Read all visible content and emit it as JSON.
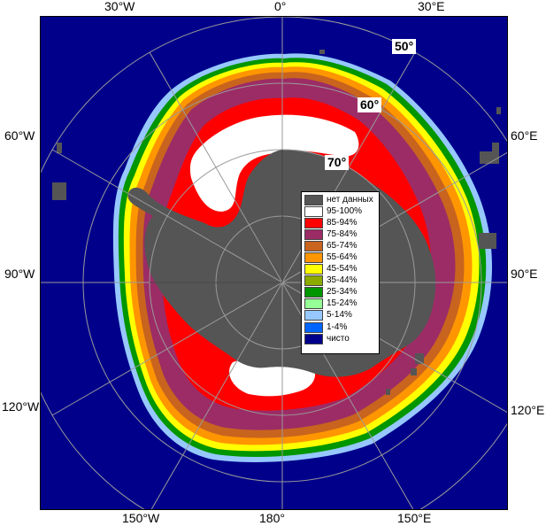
{
  "map": {
    "lon_labels": {
      "w30": "30°W",
      "zero": "0°",
      "e30": "30°E",
      "w60": "60°W",
      "e60": "60°E",
      "w90": "90°W",
      "e90": "90°E",
      "w120": "120°W",
      "e120": "120°E",
      "w150": "150°W",
      "deg180": "180°",
      "e150": "150°E"
    },
    "lat_labels": {
      "lat50": "50°",
      "lat60": "60°",
      "lat70": "70°"
    },
    "colors": {
      "ocean": "#00008b",
      "land": "#555555",
      "no_data": "#555555",
      "grid": "#9a9a9a"
    }
  },
  "legend": {
    "items": [
      {
        "label": "нет данных",
        "color": "#555555"
      },
      {
        "label": "95-100%",
        "color": "#ffffff"
      },
      {
        "label": "85-94%",
        "color": "#ff0000"
      },
      {
        "label": "75-84%",
        "color": "#9c2c66"
      },
      {
        "label": "65-74%",
        "color": "#c8641e"
      },
      {
        "label": "55-64%",
        "color": "#ff9600"
      },
      {
        "label": "45-54%",
        "color": "#ffff00"
      },
      {
        "label": "35-44%",
        "color": "#8caa00"
      },
      {
        "label": "25-34%",
        "color": "#009600"
      },
      {
        "label": "15-24%",
        "color": "#96ff96"
      },
      {
        "label": "5-14%",
        "color": "#96c8ff"
      },
      {
        "label": "1-4%",
        "color": "#0064ff"
      },
      {
        "label": "чисто",
        "color": "#00008b"
      }
    ]
  }
}
